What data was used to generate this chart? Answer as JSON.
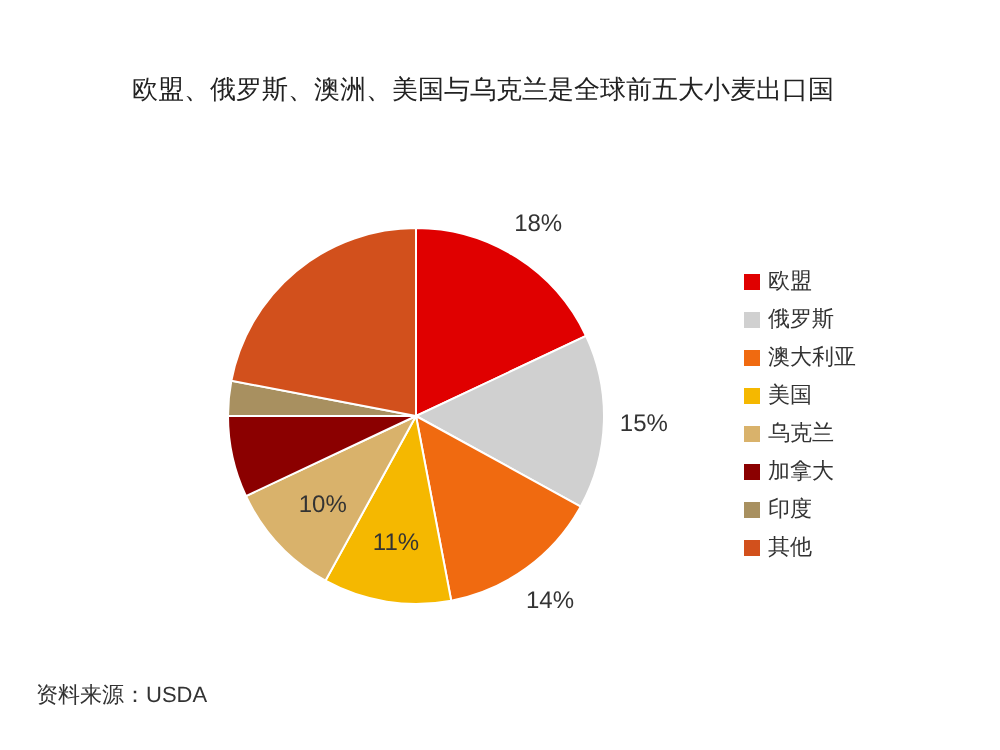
{
  "chart_data": {
    "type": "pie",
    "title": "欧盟、俄罗斯、澳洲、美国与乌克兰是全球前五大小麦出口国",
    "categories": [
      "欧盟",
      "俄罗斯",
      "澳大利亚",
      "美国",
      "乌克兰",
      "加拿大",
      "印度",
      "其他"
    ],
    "values": [
      18,
      15,
      14,
      11,
      10,
      7,
      3,
      22
    ],
    "colors": [
      "#e00000",
      "#d0d0d0",
      "#f06a10",
      "#f5b800",
      "#d9b26b",
      "#8b0000",
      "#a89060",
      "#d2501c"
    ],
    "value_labels": [
      "18%",
      "15%",
      "14%",
      "11%",
      "10%",
      null,
      null,
      null
    ],
    "legend": "right",
    "annotations": [
      "资料来源：USDA"
    ]
  }
}
